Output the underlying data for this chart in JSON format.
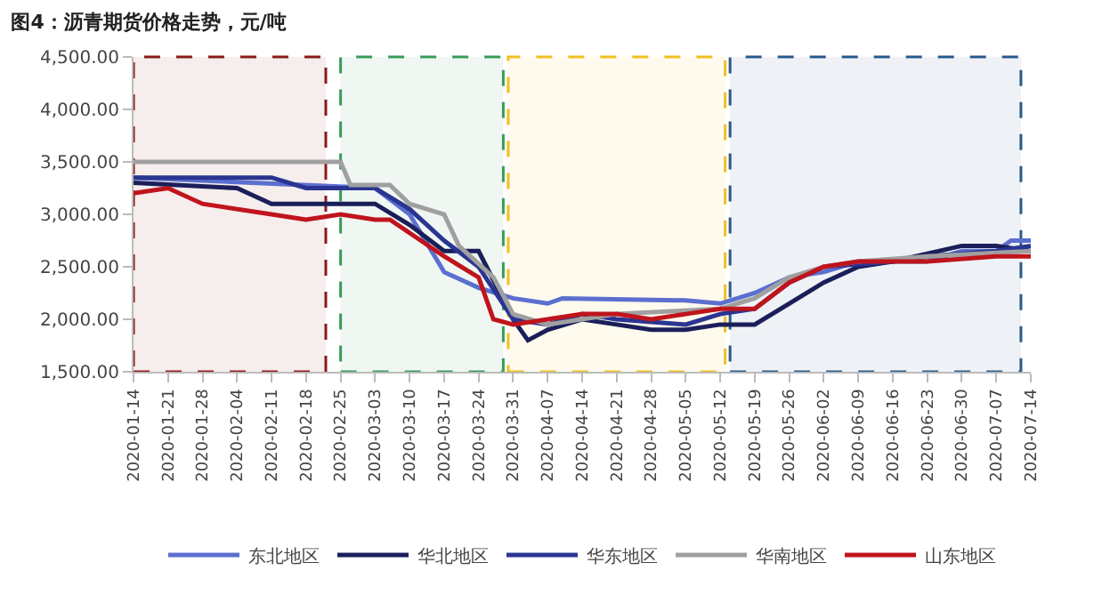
{
  "chart_data": {
    "type": "line",
    "title": "图4：沥青期货价格走势，元/吨",
    "ylim": [
      1500,
      4500
    ],
    "yticks": [
      {
        "value": 1500,
        "label": "1,500.00"
      },
      {
        "value": 2000,
        "label": "2,000.00"
      },
      {
        "value": 2500,
        "label": "2,500.00"
      },
      {
        "value": 3000,
        "label": "3,000.00"
      },
      {
        "value": 3500,
        "label": "3,500.00"
      },
      {
        "value": 4000,
        "label": "4,000.00"
      },
      {
        "value": 4500,
        "label": "4,500.00"
      }
    ],
    "xlim": [
      "2020-01-14",
      "2020-07-14"
    ],
    "xticks": [
      "2020-01-14",
      "2020-01-21",
      "2020-01-28",
      "2020-02-04",
      "2020-02-11",
      "2020-02-18",
      "2020-02-25",
      "2020-03-03",
      "2020-03-10",
      "2020-03-17",
      "2020-03-24",
      "2020-03-31",
      "2020-04-07",
      "2020-04-14",
      "2020-04-21",
      "2020-04-28",
      "2020-05-05",
      "2020-05-12",
      "2020-05-19",
      "2020-05-26",
      "2020-06-02",
      "2020-06-09",
      "2020-06-16",
      "2020-06-23",
      "2020-06-30",
      "2020-07-07",
      "2020-07-14"
    ],
    "grid": false,
    "legend": "bottom",
    "marker": "none",
    "line_style": "solid",
    "bands": [
      {
        "axis": "x",
        "from": "2020-01-14",
        "to": "2020-02-22",
        "color": "#8b1a1a"
      },
      {
        "axis": "x",
        "from": "2020-02-25",
        "to": "2020-03-29",
        "color": "#3a9a5a"
      },
      {
        "axis": "x",
        "from": "2020-03-30",
        "to": "2020-05-13",
        "color": "#f0c020"
      },
      {
        "axis": "x",
        "from": "2020-05-14",
        "to": "2020-07-12",
        "color": "#2a5a8a"
      }
    ],
    "series": [
      {
        "name": "东北地区",
        "color": "#5b6fd0",
        "x": [
          "2020-01-14",
          "2020-03-03",
          "2020-03-10",
          "2020-03-17",
          "2020-03-24",
          "2020-03-31",
          "2020-04-07",
          "2020-04-10",
          "2020-05-05",
          "2020-05-12",
          "2020-05-19",
          "2020-05-26",
          "2020-06-02",
          "2020-06-09",
          "2020-06-23",
          "2020-06-30",
          "2020-07-07",
          "2020-07-10",
          "2020-07-14"
        ],
        "values": [
          3350,
          3250,
          3000,
          2450,
          2300,
          2200,
          2150,
          2200,
          2180,
          2150,
          2250,
          2400,
          2450,
          2550,
          2550,
          2650,
          2650,
          2750,
          2750
        ]
      },
      {
        "name": "华北地区",
        "color": "#1a1f5a",
        "x": [
          "2020-01-14",
          "2020-02-04",
          "2020-02-11",
          "2020-03-03",
          "2020-03-10",
          "2020-03-17",
          "2020-03-24",
          "2020-03-31",
          "2020-04-03",
          "2020-04-07",
          "2020-04-14",
          "2020-04-21",
          "2020-04-28",
          "2020-05-05",
          "2020-05-12",
          "2020-05-19",
          "2020-05-26",
          "2020-06-02",
          "2020-06-09",
          "2020-06-16",
          "2020-06-30",
          "2020-07-07",
          "2020-07-14"
        ],
        "values": [
          3300,
          3250,
          3100,
          3100,
          2900,
          2650,
          2650,
          2000,
          1800,
          1900,
          2000,
          1950,
          1900,
          1900,
          1950,
          1950,
          2150,
          2350,
          2500,
          2550,
          2700,
          2700,
          2650
        ]
      },
      {
        "name": "华东地区",
        "color": "#2a3591",
        "x": [
          "2020-01-14",
          "2020-02-11",
          "2020-02-18",
          "2020-03-03",
          "2020-03-10",
          "2020-03-17",
          "2020-03-24",
          "2020-03-31",
          "2020-04-07",
          "2020-04-14",
          "2020-04-21",
          "2020-05-05",
          "2020-05-12",
          "2020-05-19",
          "2020-05-26",
          "2020-06-02",
          "2020-06-16",
          "2020-06-23",
          "2020-07-07",
          "2020-07-14"
        ],
        "values": [
          3350,
          3350,
          3250,
          3250,
          3050,
          2750,
          2500,
          2000,
          1950,
          2050,
          2000,
          1950,
          2050,
          2100,
          2350,
          2500,
          2550,
          2600,
          2650,
          2700
        ]
      },
      {
        "name": "华南地区",
        "color": "#a0a0a0",
        "x": [
          "2020-01-14",
          "2020-02-25",
          "2020-02-27",
          "2020-03-06",
          "2020-03-10",
          "2020-03-17",
          "2020-03-20",
          "2020-03-27",
          "2020-03-31",
          "2020-04-07",
          "2020-04-21",
          "2020-05-12",
          "2020-05-19",
          "2020-05-26",
          "2020-06-02",
          "2020-06-09",
          "2020-06-23",
          "2020-07-14"
        ],
        "values": [
          3500,
          3500,
          3280,
          3280,
          3100,
          3000,
          2700,
          2400,
          2050,
          1950,
          2050,
          2100,
          2200,
          2400,
          2500,
          2550,
          2600,
          2650
        ]
      },
      {
        "name": "山东地区",
        "color": "#c0141c",
        "x": [
          "2020-01-14",
          "2020-01-21",
          "2020-01-28",
          "2020-02-11",
          "2020-02-18",
          "2020-02-25",
          "2020-03-03",
          "2020-03-06",
          "2020-03-17",
          "2020-03-24",
          "2020-03-27",
          "2020-03-31",
          "2020-04-07",
          "2020-04-14",
          "2020-04-21",
          "2020-04-28",
          "2020-05-05",
          "2020-05-12",
          "2020-05-19",
          "2020-05-26",
          "2020-06-02",
          "2020-06-09",
          "2020-06-23",
          "2020-07-07",
          "2020-07-14"
        ],
        "values": [
          3200,
          3250,
          3100,
          3000,
          2950,
          3000,
          2950,
          2950,
          2600,
          2400,
          2000,
          1950,
          2000,
          2050,
          2050,
          2000,
          2050,
          2100,
          2100,
          2350,
          2500,
          2550,
          2550,
          2600,
          2600
        ]
      }
    ]
  }
}
